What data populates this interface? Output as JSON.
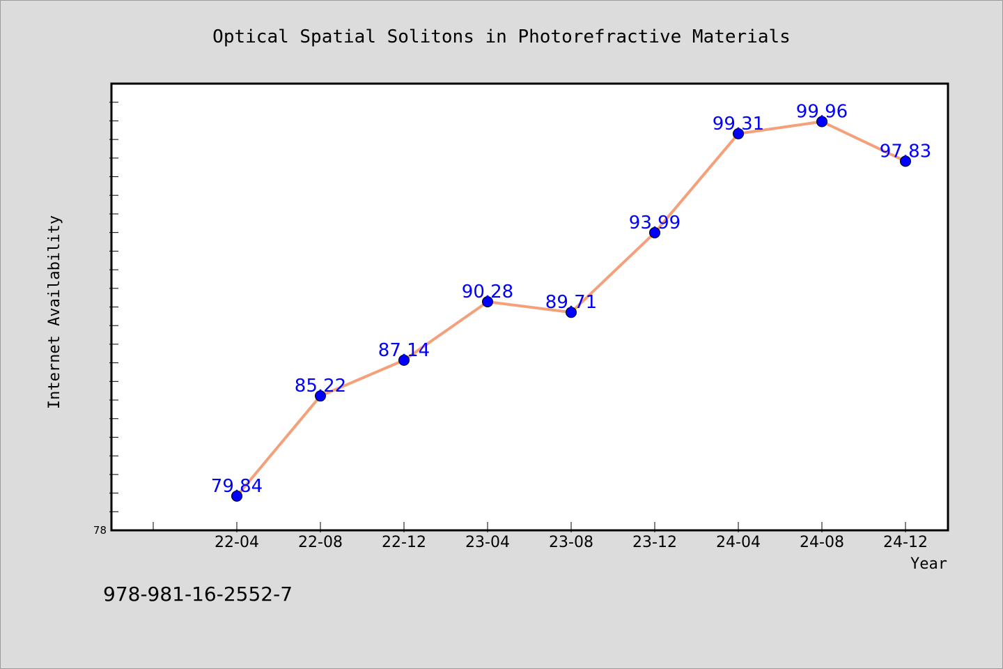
{
  "chart_data": {
    "type": "line",
    "title": "Optical Spatial Solitons in Photorefractive Materials",
    "xlabel": "Year",
    "ylabel": "Internet Availability",
    "categories": [
      "22-04",
      "22-08",
      "22-12",
      "23-04",
      "23-08",
      "23-12",
      "24-04",
      "24-08",
      "24-12"
    ],
    "values": [
      79.84,
      85.22,
      87.14,
      90.28,
      89.71,
      93.99,
      99.31,
      99.96,
      97.83
    ],
    "value_labels": [
      "79.84",
      "85.22",
      "87.14",
      "90.28",
      "89.71",
      "93.99",
      "99.31",
      "99.96",
      "97.83"
    ],
    "ylim": [
      78,
      102
    ],
    "y_tick_labels_shown": [
      "78"
    ],
    "grid": false,
    "line_color": "#f4a07a",
    "marker_color": "#0000ff",
    "label_color": "#0000ff"
  },
  "footer_text": "978-981-16-2552-7"
}
